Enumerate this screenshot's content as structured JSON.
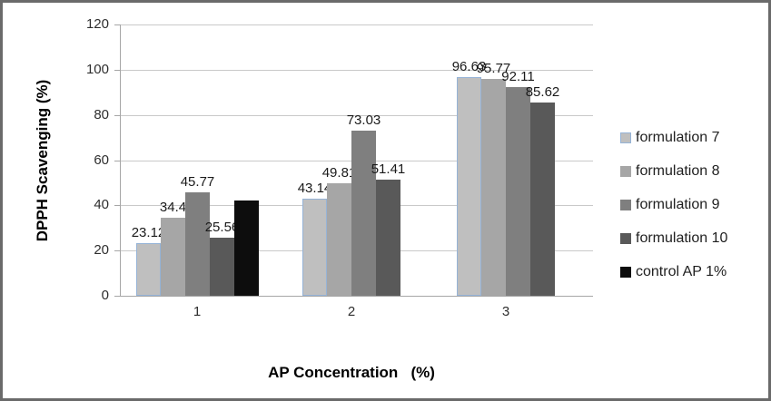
{
  "chart_data": {
    "type": "bar",
    "title": "",
    "xlabel": "AP Concentration   (%)",
    "ylabel": "DPPH Scavenging (%)",
    "categories": [
      "1",
      "2",
      "3"
    ],
    "ylim": [
      0,
      120
    ],
    "yticks": [
      0,
      20,
      40,
      60,
      80,
      100,
      120
    ],
    "grid": true,
    "legend_position": "right",
    "series": [
      {
        "name": "formulation 7",
        "color": "#bfbfbf",
        "border_color": "#95b3d7",
        "values": [
          23.12,
          43.14,
          96.63
        ],
        "labels": [
          "23.12",
          "43.14",
          "96.63"
        ]
      },
      {
        "name": "formulation 8",
        "color": "#a6a6a6",
        "border_color": null,
        "values": [
          34.4,
          49.81,
          95.77
        ],
        "labels": [
          "34.4",
          "49.81",
          "95.77"
        ]
      },
      {
        "name": "formulation 9",
        "color": "#7f7f7f",
        "border_color": null,
        "values": [
          45.77,
          73.03,
          92.11
        ],
        "labels": [
          "45.77",
          "73.03",
          "92.11"
        ]
      },
      {
        "name": "formulation 10",
        "color": "#595959",
        "border_color": null,
        "values": [
          25.56,
          51.41,
          85.62
        ],
        "labels": [
          "25.56",
          "51.41",
          "85.62"
        ]
      },
      {
        "name": "control AP 1%",
        "color": "#0d0d0d",
        "border_color": null,
        "values": [
          42.3,
          null,
          null
        ],
        "labels": [
          "",
          "",
          ""
        ]
      }
    ]
  },
  "colors": {
    "background": "#ffffff",
    "frame_border": "#6a6a6a",
    "gridline": "#c9c9c9",
    "axis_line": "#a6a6a6",
    "tick_text": "#2e2e2e",
    "data_label_text": "#1a1a1a",
    "axis_title_text": "#000000",
    "legend_text": "#1f1f1f"
  }
}
